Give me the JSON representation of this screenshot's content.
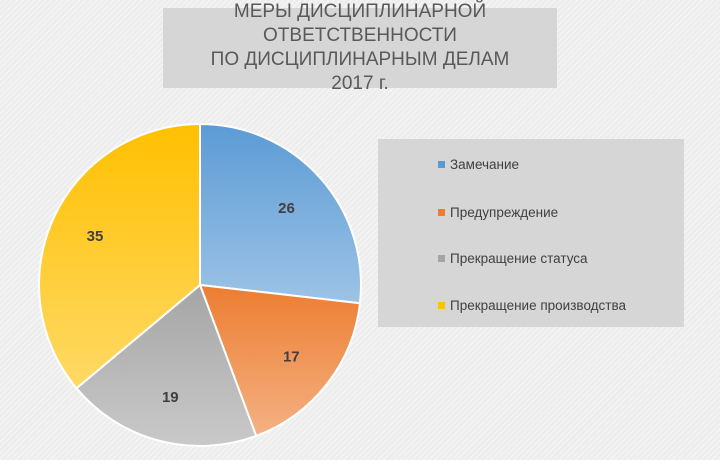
{
  "chart_data": {
    "type": "pie",
    "title_lines": [
      "МЕРЫ ДИСЦИПЛИНАРНОЙ ОТВЕТСТВЕННОСТИ",
      "ПО ДИСЦИПЛИНАРНЫМ ДЕЛАМ",
      "2017 г."
    ],
    "categories": [
      "Замечание",
      "Предупреждение",
      "Прекращение статуса",
      "Прекращение производства"
    ],
    "values": [
      26,
      17,
      19,
      35
    ],
    "data_labels": [
      "26",
      "17",
      "19",
      "35"
    ],
    "colors": [
      "#5b9bd5",
      "#ed7d31",
      "#a5a5a5",
      "#ffc000"
    ],
    "legend_position": "right"
  }
}
